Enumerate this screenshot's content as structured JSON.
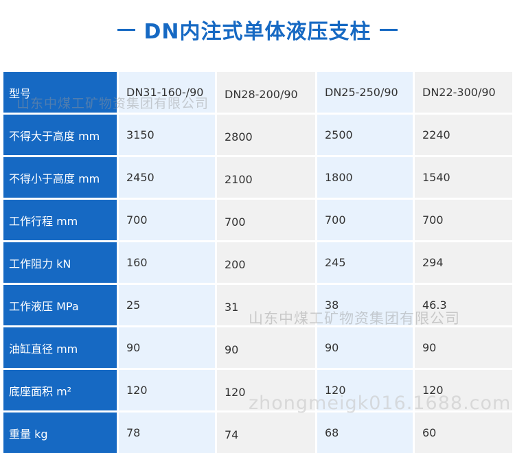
{
  "title": "DN内注式单体液压支柱",
  "table": {
    "rows": [
      {
        "label": "型号",
        "values": [
          "DN31-160-/90",
          "DN28-200/90",
          "DN25-250/90",
          "DN22-300/90"
        ]
      },
      {
        "label": "不得大于高度 mm",
        "values": [
          "3150",
          "2800",
          "2500",
          "2240"
        ]
      },
      {
        "label": "不得小于高度 mm",
        "values": [
          "2450",
          "2100",
          "1800",
          "1540"
        ]
      },
      {
        "label": "工作行程 mm",
        "values": [
          "700",
          "700",
          "700",
          "700"
        ]
      },
      {
        "label": "工作阻力 kN",
        "values": [
          "160",
          "200",
          "245",
          "294"
        ]
      },
      {
        "label": "工作液压 MPa",
        "values": [
          "25",
          "31",
          "38",
          "46.3"
        ]
      },
      {
        "label": "油缸直径 mm",
        "values": [
          "90",
          "90",
          "90",
          "90"
        ]
      },
      {
        "label": "底座面积 m²",
        "values": [
          "120",
          "120",
          "120",
          "120"
        ]
      },
      {
        "label": "重量 kg",
        "values": [
          "78",
          "74",
          "68",
          "60"
        ]
      }
    ]
  },
  "watermarks": {
    "company": "山东中煤工矿物资集团有限公司",
    "company_2": "山东中煤工矿物资集团有限公司",
    "site": "zhongmeigk016.1688.com"
  },
  "colors": {
    "brand_blue": "#1669c3",
    "light_blue_cell": "#e8f2fd",
    "light_gray_cell": "#f1f1f1"
  }
}
